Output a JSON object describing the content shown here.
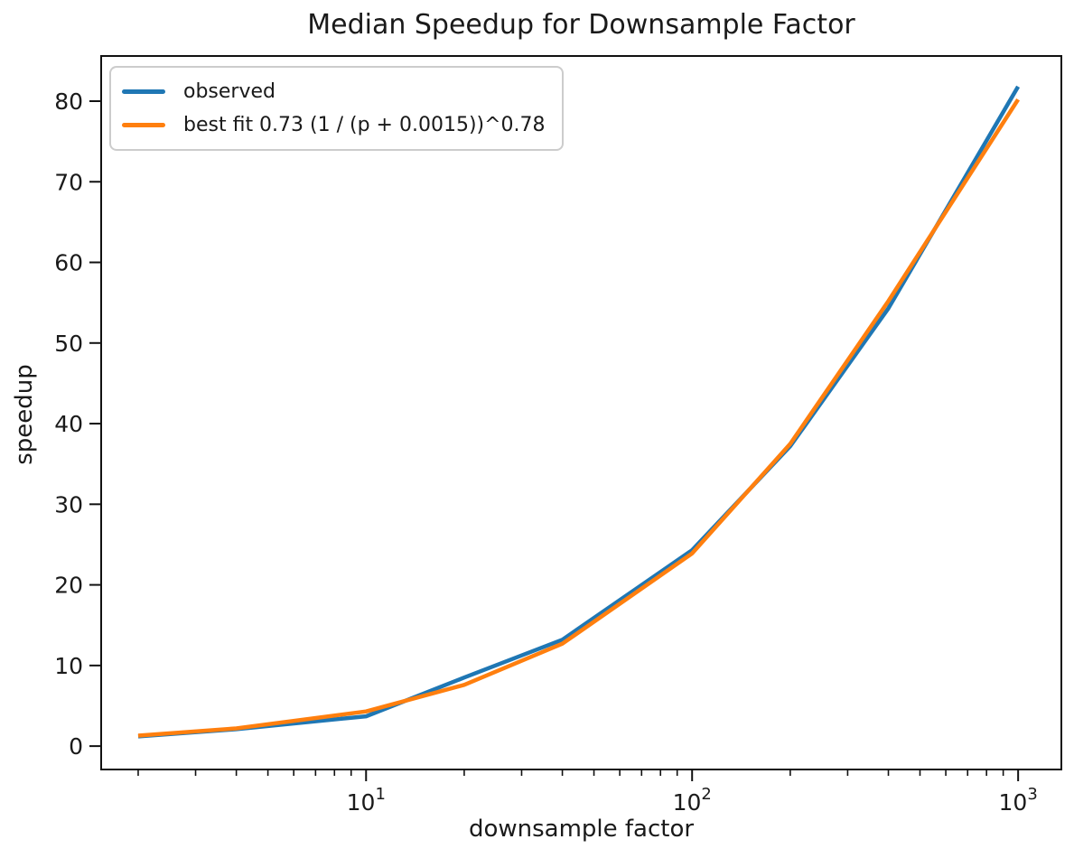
{
  "chart": {
    "title": "Median Speedup for Downsample Factor",
    "xlabel": "downsample factor",
    "ylabel": "speedup"
  },
  "chart_data": {
    "type": "line",
    "title": "Median Speedup for Downsample Factor",
    "xlabel": "downsample factor",
    "ylabel": "speedup",
    "xscale": "log",
    "grid": false,
    "legend_position": "upper left",
    "xlim": [
      1.54,
      1357
    ],
    "ylim": [
      -2.9,
      85.6
    ],
    "yticks": [
      0,
      10,
      20,
      30,
      40,
      50,
      60,
      70,
      80
    ],
    "xticks": [
      {
        "value": 10,
        "base": "10",
        "exp": "1"
      },
      {
        "value": 100,
        "base": "10",
        "exp": "2"
      },
      {
        "value": 1000,
        "base": "10",
        "exp": "3"
      }
    ],
    "x": [
      2,
      4,
      10,
      20,
      40,
      100,
      200,
      400,
      1000
    ],
    "series": [
      {
        "name": "observed",
        "color": "#1f77b4",
        "values": [
          1.2,
          2.1,
          3.7,
          8.5,
          13.2,
          24.3,
          37.2,
          54.3,
          81.8
        ]
      },
      {
        "name": "best fit 0.73 (1 / (p + 0.0015))^0.78",
        "color": "#ff7f0e",
        "values": [
          1.3,
          2.2,
          4.3,
          7.6,
          12.7,
          23.9,
          37.5,
          55.2,
          80.2
        ]
      }
    ],
    "axis_color": "#111111",
    "text_color": "#1a1a1a"
  }
}
